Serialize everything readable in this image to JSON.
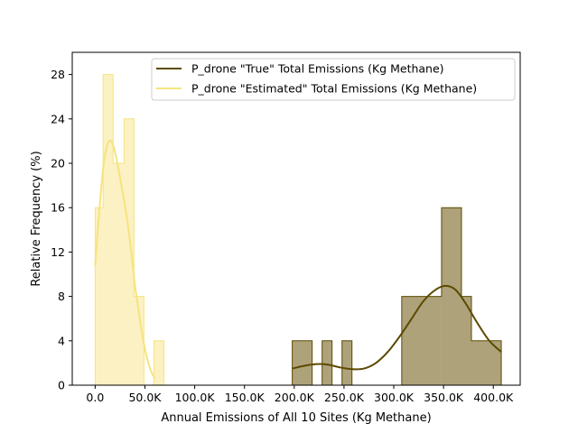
{
  "chart_data": {
    "type": "histogram",
    "xlabel": "Annual Emissions of All 10 Sites (Kg Methane)",
    "ylabel": "Relative Frequency (%)",
    "xlim": [
      -23000,
      427000
    ],
    "ylim": [
      0,
      30
    ],
    "x_ticks": [
      {
        "value": 0,
        "label": "0.0"
      },
      {
        "value": 50000,
        "label": "50.0K"
      },
      {
        "value": 100000,
        "label": "100.0K"
      },
      {
        "value": 150000,
        "label": "150.0K"
      },
      {
        "value": 200000,
        "label": "200.0K"
      },
      {
        "value": 250000,
        "label": "250.0K"
      },
      {
        "value": 300000,
        "label": "300.0K"
      },
      {
        "value": 350000,
        "label": "350.0K"
      },
      {
        "value": 400000,
        "label": "400.0K"
      }
    ],
    "y_ticks": [
      {
        "value": 0,
        "label": "0"
      },
      {
        "value": 4,
        "label": "4"
      },
      {
        "value": 8,
        "label": "8"
      },
      {
        "value": 12,
        "label": "12"
      },
      {
        "value": 16,
        "label": "16"
      },
      {
        "value": 20,
        "label": "20"
      },
      {
        "value": 24,
        "label": "24"
      },
      {
        "value": 28,
        "label": "28"
      }
    ],
    "legend_position": "top-right",
    "grid": false,
    "series": [
      {
        "name": "P_drone \"True\" Total Emissions (Kg Methane)",
        "color": "#5c4a00",
        "fill": "#ada27a",
        "bins": [
          {
            "x0": 198000,
            "x1": 218000,
            "value": 4
          },
          {
            "x0": 218000,
            "x1": 228000,
            "value": 0
          },
          {
            "x0": 228000,
            "x1": 238000,
            "value": 4
          },
          {
            "x0": 238000,
            "x1": 248000,
            "value": 0
          },
          {
            "x0": 248000,
            "x1": 258000,
            "value": 4
          },
          {
            "x0": 258000,
            "x1": 308000,
            "value": 0
          },
          {
            "x0": 308000,
            "x1": 348000,
            "value": 8
          },
          {
            "x0": 348000,
            "x1": 368000,
            "value": 16
          },
          {
            "x0": 368000,
            "x1": 378000,
            "value": 8
          },
          {
            "x0": 378000,
            "x1": 408000,
            "value": 4
          }
        ],
        "kde": {
          "x": [
            198000,
            210000,
            222000,
            234000,
            246000,
            258000,
            270000,
            282000,
            294000,
            306000,
            318000,
            330000,
            342000,
            352000,
            362000,
            372000,
            384000,
            396000,
            408000
          ],
          "y": [
            1.5,
            1.75,
            1.9,
            1.85,
            1.6,
            1.45,
            1.5,
            2.0,
            3.0,
            4.4,
            6.0,
            7.6,
            8.6,
            8.95,
            8.6,
            7.4,
            5.6,
            4.0,
            3.0
          ]
        }
      },
      {
        "name": "P_drone \"Estimated\" Total Emissions (Kg Methane)",
        "color": "#f5e47e",
        "fill": "#fcf1c2",
        "bins": [
          {
            "x0": 0,
            "x1": 8000,
            "value": 16
          },
          {
            "x0": 8000,
            "x1": 18000,
            "value": 28
          },
          {
            "x0": 18000,
            "x1": 29000,
            "value": 20
          },
          {
            "x0": 29000,
            "x1": 39000,
            "value": 24
          },
          {
            "x0": 39000,
            "x1": 49000,
            "value": 8
          },
          {
            "x0": 49000,
            "x1": 59000,
            "value": 0
          },
          {
            "x0": 59000,
            "x1": 69000,
            "value": 4
          }
        ],
        "kde": {
          "x": [
            0,
            4000,
            8000,
            12000,
            16000,
            20000,
            24000,
            28000,
            32000,
            36000,
            40000,
            44000,
            48000,
            52000,
            56000,
            60000
          ],
          "y": [
            10.8,
            15.5,
            19.5,
            21.6,
            22.0,
            21.0,
            19.2,
            17.2,
            15.0,
            12.2,
            9.0,
            6.5,
            4.2,
            2.5,
            1.3,
            0.6
          ]
        }
      }
    ]
  }
}
